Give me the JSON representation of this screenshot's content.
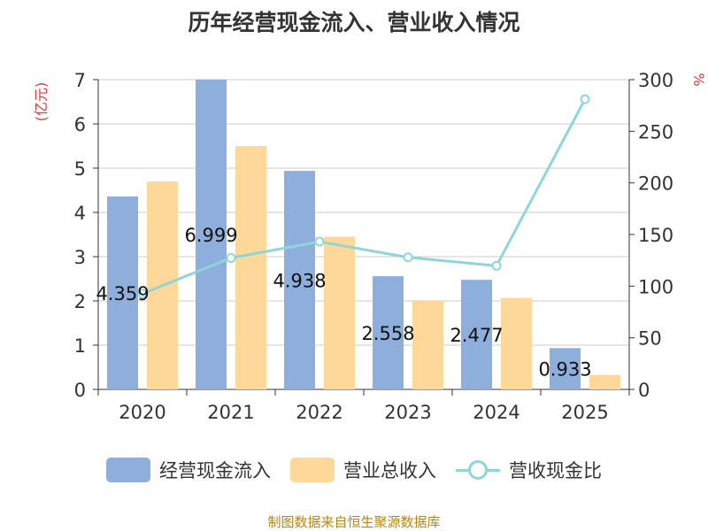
{
  "title": "历年经营现金流入、营业收入情况",
  "source": "制图数据来自恒生聚源数据库",
  "chart_data": {
    "type": "bar",
    "categories": [
      "2020",
      "2021",
      "2022",
      "2023",
      "2024",
      "2025"
    ],
    "series": [
      {
        "name": "经营现金流入",
        "type": "bar",
        "axis": "left",
        "color": "#8eaedc",
        "values": [
          4.359,
          6.999,
          4.938,
          2.558,
          2.477,
          0.933
        ],
        "labels": [
          "4.359",
          "6.999",
          "4.938",
          "2.558",
          "2.477",
          "0.933"
        ]
      },
      {
        "name": "营业总收入",
        "type": "bar",
        "axis": "left",
        "color": "#fdd899",
        "values": [
          4.7,
          5.5,
          3.45,
          2.0,
          2.07,
          0.33
        ]
      },
      {
        "name": "营收现金比",
        "type": "line",
        "axis": "right",
        "color": "#8fd6d9",
        "values": [
          92.7,
          127.3,
          143.1,
          127.9,
          119.7,
          281.0
        ]
      }
    ],
    "y_left": {
      "label": "(亿元)",
      "min": 0,
      "max": 7,
      "ticks": [
        "0",
        "1",
        "2",
        "3",
        "4",
        "5",
        "6",
        "7"
      ]
    },
    "y_right": {
      "label": "%",
      "min": 0,
      "max": 300,
      "ticks": [
        "0",
        "50",
        "100",
        "150",
        "200",
        "250",
        "300"
      ]
    },
    "grid": true,
    "legend_position": "bottom"
  },
  "colors": {
    "title": "#333333",
    "axis": "#333333",
    "grid": "#cccccc",
    "unit_label": "#e0393e",
    "source": "#b8860b"
  }
}
